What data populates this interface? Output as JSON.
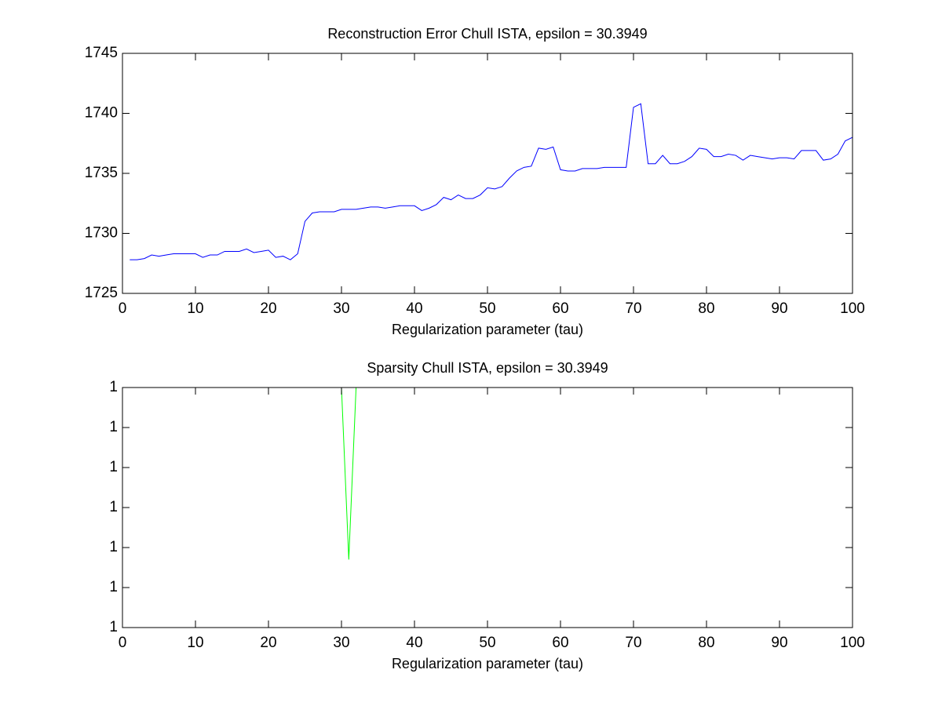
{
  "chart_data": [
    {
      "type": "line",
      "title": "Reconstruction Error Chull ISTA, epsilon = 30.3949",
      "xlabel": "Regularization parameter (tau)",
      "x": [
        1,
        2,
        3,
        4,
        5,
        6,
        7,
        8,
        9,
        10,
        11,
        12,
        13,
        14,
        15,
        16,
        17,
        18,
        19,
        20,
        21,
        22,
        23,
        24,
        25,
        26,
        27,
        28,
        29,
        30,
        31,
        32,
        33,
        34,
        35,
        36,
        37,
        38,
        39,
        40,
        41,
        42,
        43,
        44,
        45,
        46,
        47,
        48,
        49,
        50,
        51,
        52,
        53,
        54,
        55,
        56,
        57,
        58,
        59,
        60,
        61,
        62,
        63,
        64,
        65,
        66,
        67,
        68,
        69,
        70,
        71,
        72,
        73,
        74,
        75,
        76,
        77,
        78,
        79,
        80,
        81,
        82,
        83,
        84,
        85,
        86,
        87,
        88,
        89,
        90,
        91,
        92,
        93,
        94,
        95,
        96,
        97,
        98,
        99,
        100
      ],
      "series": [
        {
          "color": "#0000ff",
          "values": [
            1727.8,
            1727.8,
            1727.9,
            1728.2,
            1728.1,
            1728.2,
            1728.3,
            1728.3,
            1728.3,
            1728.3,
            1728.0,
            1728.2,
            1728.2,
            1728.5,
            1728.5,
            1728.5,
            1728.7,
            1728.4,
            1728.5,
            1728.6,
            1728.0,
            1728.1,
            1727.8,
            1728.3,
            1731.0,
            1731.7,
            1731.8,
            1731.8,
            1731.8,
            1732.0,
            1732.0,
            1732.0,
            1732.1,
            1732.2,
            1732.2,
            1732.1,
            1732.2,
            1732.3,
            1732.3,
            1732.3,
            1731.9,
            1732.1,
            1732.4,
            1733.0,
            1732.8,
            1733.2,
            1732.9,
            1732.9,
            1733.2,
            1733.8,
            1733.7,
            1733.9,
            1734.6,
            1735.2,
            1735.5,
            1735.6,
            1737.1,
            1737.0,
            1737.2,
            1735.3,
            1735.2,
            1735.2,
            1735.4,
            1735.4,
            1735.4,
            1735.5,
            1735.5,
            1735.5,
            1735.5,
            1740.5,
            1740.8,
            1735.8,
            1735.8,
            1736.5,
            1735.8,
            1735.8,
            1736.0,
            1736.4,
            1737.1,
            1737.0,
            1736.4,
            1736.4,
            1736.6,
            1736.5,
            1736.1,
            1736.5,
            1736.4,
            1736.3,
            1736.2,
            1736.3,
            1736.3,
            1736.2,
            1736.9,
            1736.9,
            1736.9,
            1736.1,
            1736.2,
            1736.6,
            1737.7,
            1738.0
          ]
        }
      ],
      "xlim": [
        0,
        100
      ],
      "xticks": [
        0,
        10,
        20,
        30,
        40,
        50,
        60,
        70,
        80,
        90,
        100
      ],
      "ylim": [
        1725,
        1745
      ],
      "yticks": [
        1725,
        1730,
        1735,
        1740,
        1745
      ]
    },
    {
      "type": "line",
      "title": "Sparsity Chull ISTA, epsilon = 30.3949",
      "xlabel": "Regularization parameter (tau)",
      "x": [
        1,
        2,
        3,
        4,
        5,
        6,
        7,
        8,
        9,
        10,
        11,
        12,
        13,
        14,
        15,
        16,
        17,
        18,
        19,
        20,
        21,
        22,
        23,
        24,
        25,
        26,
        27,
        28,
        29,
        30,
        31,
        32,
        33,
        34,
        35,
        36,
        37,
        38,
        39,
        40,
        41,
        42,
        43,
        44,
        45,
        46,
        47,
        48,
        49,
        50,
        51,
        52,
        53,
        54,
        55,
        56,
        57,
        58,
        59,
        60,
        61,
        62,
        63,
        64,
        65,
        66,
        67,
        68,
        69,
        70,
        71,
        72,
        73,
        74,
        75,
        76,
        77,
        78,
        79,
        80,
        81,
        82,
        83,
        84,
        85,
        86,
        87,
        88,
        89,
        90,
        91,
        92,
        93,
        94,
        95,
        96,
        97,
        98,
        99,
        100
      ],
      "series": [
        {
          "color": "#00ff00",
          "values": [
            1,
            1,
            1,
            1,
            1,
            1,
            1,
            1,
            1,
            1,
            1,
            1,
            1,
            1,
            1,
            1,
            1,
            1,
            1,
            1,
            1,
            1,
            1,
            1,
            1,
            1,
            1,
            1,
            1,
            1,
            0.9999957,
            1,
            1,
            1,
            1,
            1,
            1,
            1,
            1,
            1,
            1,
            1,
            1,
            1,
            1,
            1,
            1,
            1,
            1,
            1,
            1,
            1,
            1,
            1,
            1,
            1,
            1,
            1,
            1,
            1,
            1,
            1,
            1,
            1,
            1,
            1,
            1,
            1,
            1,
            1,
            1,
            1,
            1,
            1,
            1,
            1,
            1,
            1,
            1,
            1,
            1,
            1,
            1,
            1,
            1,
            1,
            1,
            1,
            1,
            1,
            1,
            1,
            1,
            1,
            1,
            1,
            1,
            1,
            1,
            1
          ]
        }
      ],
      "xlim": [
        0,
        100
      ],
      "xticks": [
        0,
        10,
        20,
        30,
        40,
        50,
        60,
        70,
        80,
        90,
        100
      ],
      "ylim": [
        0.999994,
        1
      ],
      "yticks": [
        {
          "value": 0.999994,
          "label": "1"
        },
        {
          "value": 0.999995,
          "label": "1"
        },
        {
          "value": 0.999996,
          "label": "1"
        },
        {
          "value": 0.999997,
          "label": "1"
        },
        {
          "value": 0.999998,
          "label": "1"
        },
        {
          "value": 0.999999,
          "label": "1"
        },
        1
      ]
    }
  ]
}
